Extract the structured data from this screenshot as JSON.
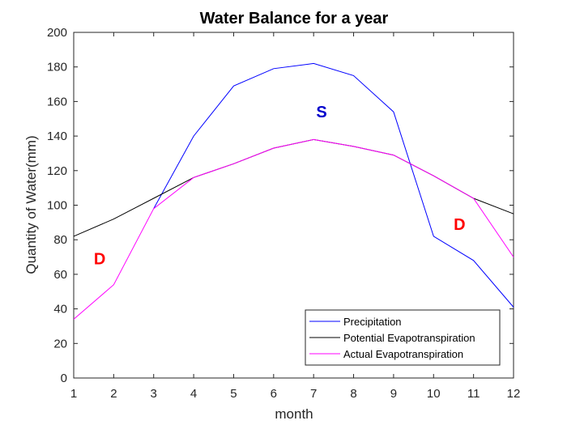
{
  "chart_data": {
    "type": "line",
    "title": "Water Balance for a year",
    "xlabel": "month",
    "ylabel": "Quantity of Water(mm)",
    "xlim": [
      1,
      12
    ],
    "ylim": [
      0,
      200
    ],
    "x": [
      1,
      2,
      3,
      4,
      5,
      6,
      7,
      8,
      9,
      10,
      11,
      12
    ],
    "x_ticks": [
      "1",
      "2",
      "3",
      "4",
      "5",
      "6",
      "7",
      "8",
      "9",
      "10",
      "11",
      "12"
    ],
    "y_ticks": [
      "0",
      "20",
      "40",
      "60",
      "80",
      "100",
      "120",
      "140",
      "160",
      "180",
      "200"
    ],
    "grid": false,
    "legend_position": "bottom-right",
    "series": [
      {
        "name": "Precipitation",
        "color": "#0000ff",
        "values": [
          null,
          null,
          98,
          140,
          169,
          179,
          182,
          175,
          154,
          82,
          68,
          41
        ]
      },
      {
        "name": "Potential Evapotranspiration",
        "color": "#000000",
        "values": [
          82,
          92,
          104,
          116,
          124,
          133,
          138,
          134,
          129,
          117,
          104,
          95
        ]
      },
      {
        "name": "Actual Evapotranspiration",
        "color": "#ff00ff",
        "values": [
          34,
          54,
          98,
          116,
          124,
          133,
          138,
          134,
          129,
          117,
          104,
          70
        ]
      }
    ],
    "annotations": [
      {
        "text": "D",
        "x": 1.65,
        "y": 69,
        "color": "#ff0000"
      },
      {
        "text": "S",
        "x": 7.2,
        "y": 154,
        "color": "#0000cc"
      },
      {
        "text": "D",
        "x": 10.65,
        "y": 89,
        "color": "#ff0000"
      }
    ]
  }
}
